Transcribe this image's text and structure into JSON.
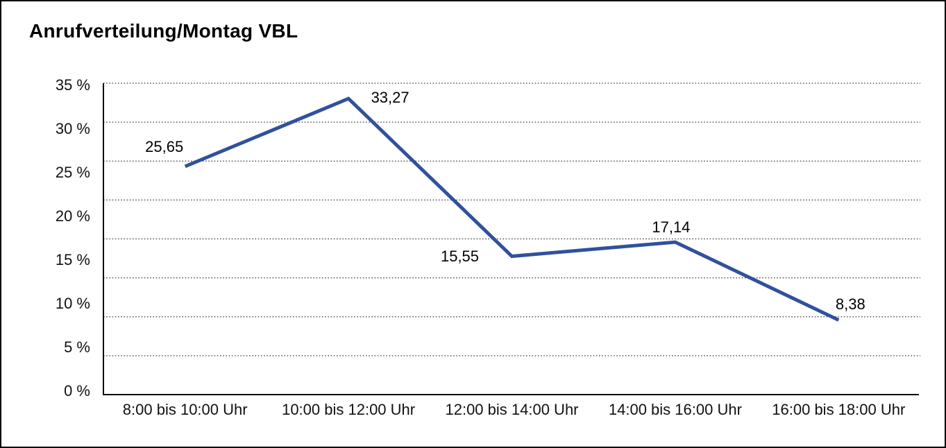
{
  "chart_data": {
    "type": "line",
    "title": "Anrufverteilung/Montag VBL",
    "categories": [
      "8:00 bis 10:00 Uhr",
      "10:00 bis 12:00 Uhr",
      "12:00 bis 14:00 Uhr",
      "14:00 bis 16:00 Uhr",
      "16:00 bis 18:00 Uhr"
    ],
    "series": [
      {
        "values": [
          25.65,
          33.27,
          15.55,
          17.14,
          8.38
        ],
        "point_labels": [
          "25,65",
          "33,27",
          "15,55",
          "17,14",
          "8,38"
        ],
        "point_label_placements": [
          "above-left",
          "right",
          "left",
          "above",
          "above-right"
        ],
        "line_color": "#30519C"
      }
    ],
    "unit": "%",
    "decimal_separator": ",",
    "ylim": [
      0,
      35
    ],
    "y_ticks_top_to_bottom": [
      "35 %",
      "30 %",
      "25 %",
      "20 %",
      "15 %",
      "10 %",
      "5 %",
      "0 %"
    ],
    "grid": {
      "horizontal_gridlines_dotted": 8,
      "gridline_color": "#3a3a3a",
      "axis_color": "#000000"
    },
    "legend": "none",
    "background": "#ffffff"
  }
}
